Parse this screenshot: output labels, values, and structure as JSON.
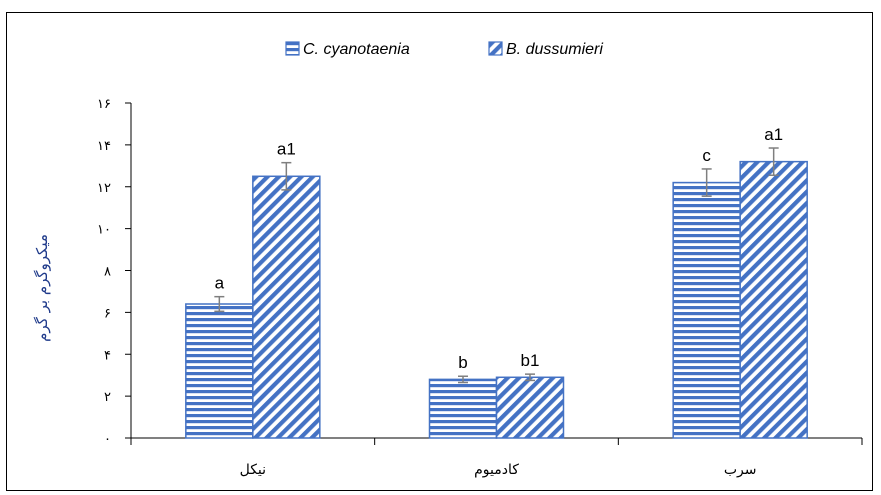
{
  "chart_data": {
    "type": "bar",
    "title": "",
    "xlabel": "",
    "ylabel": "میکروگرم بر گرم",
    "categories": [
      "نیکل",
      "کادمیوم",
      "سرب"
    ],
    "ylim": [
      0,
      16
    ],
    "yticks": [
      0,
      2,
      4,
      6,
      8,
      10,
      12,
      14,
      16
    ],
    "ytick_labels": [
      "۰",
      "۲",
      "۴",
      "۶",
      "۸",
      "۱۰",
      "۱۲",
      "۱۴",
      "۱۶"
    ],
    "legend_position": "top-center",
    "grid": false,
    "series": [
      {
        "name": "C. cyanotaenia",
        "values": [
          6.4,
          2.8,
          12.2
        ],
        "errors": [
          0.35,
          0.15,
          0.65
        ],
        "labels": [
          "a",
          "b",
          "c"
        ],
        "color": "#4472c4",
        "pattern": "horizontal"
      },
      {
        "name": "B. dussumieri",
        "values": [
          12.5,
          2.9,
          13.2
        ],
        "errors": [
          0.65,
          0.15,
          0.65
        ],
        "labels": [
          "a1",
          "b1",
          "a1"
        ],
        "color": "#4472c4",
        "pattern": "diagonal"
      }
    ]
  }
}
